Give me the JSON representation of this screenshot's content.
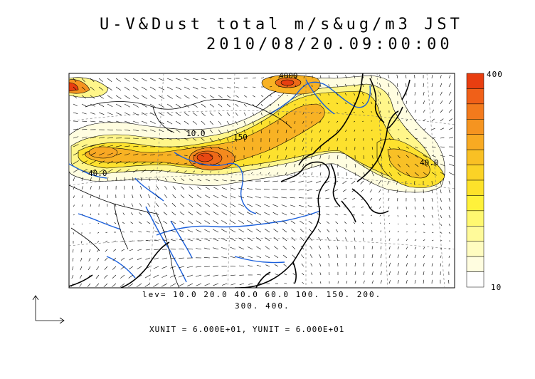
{
  "title": "U-V&Dust total m/s&ug/m3 JST",
  "datetime": "2010/08/20.09:00:00",
  "levels_text_1": "lev= 10.0 20.0 40.0 60.0 100. 150. 200.",
  "levels_text_2": "300. 400.",
  "units_text": "XUNIT = 6.000E+01, YUNIT = 6.000E+01",
  "colorbar": {
    "top_label": "400",
    "bottom_label": "10",
    "colors": [
      "#e83e10",
      "#f06018",
      "#f37a1c",
      "#f59420",
      "#f8aa22",
      "#f9c024",
      "#fbd326",
      "#fde22a",
      "#fff13a",
      "#fff870",
      "#fffa9a",
      "#fffcc0",
      "#fffde0",
      "#ffffff"
    ]
  },
  "contour_labels": [
    "4000",
    "40.0",
    "150",
    "40.0",
    "10.0"
  ],
  "colors": {
    "coast": "#000000",
    "river": "#1a5fdb",
    "border": "#000000"
  }
}
